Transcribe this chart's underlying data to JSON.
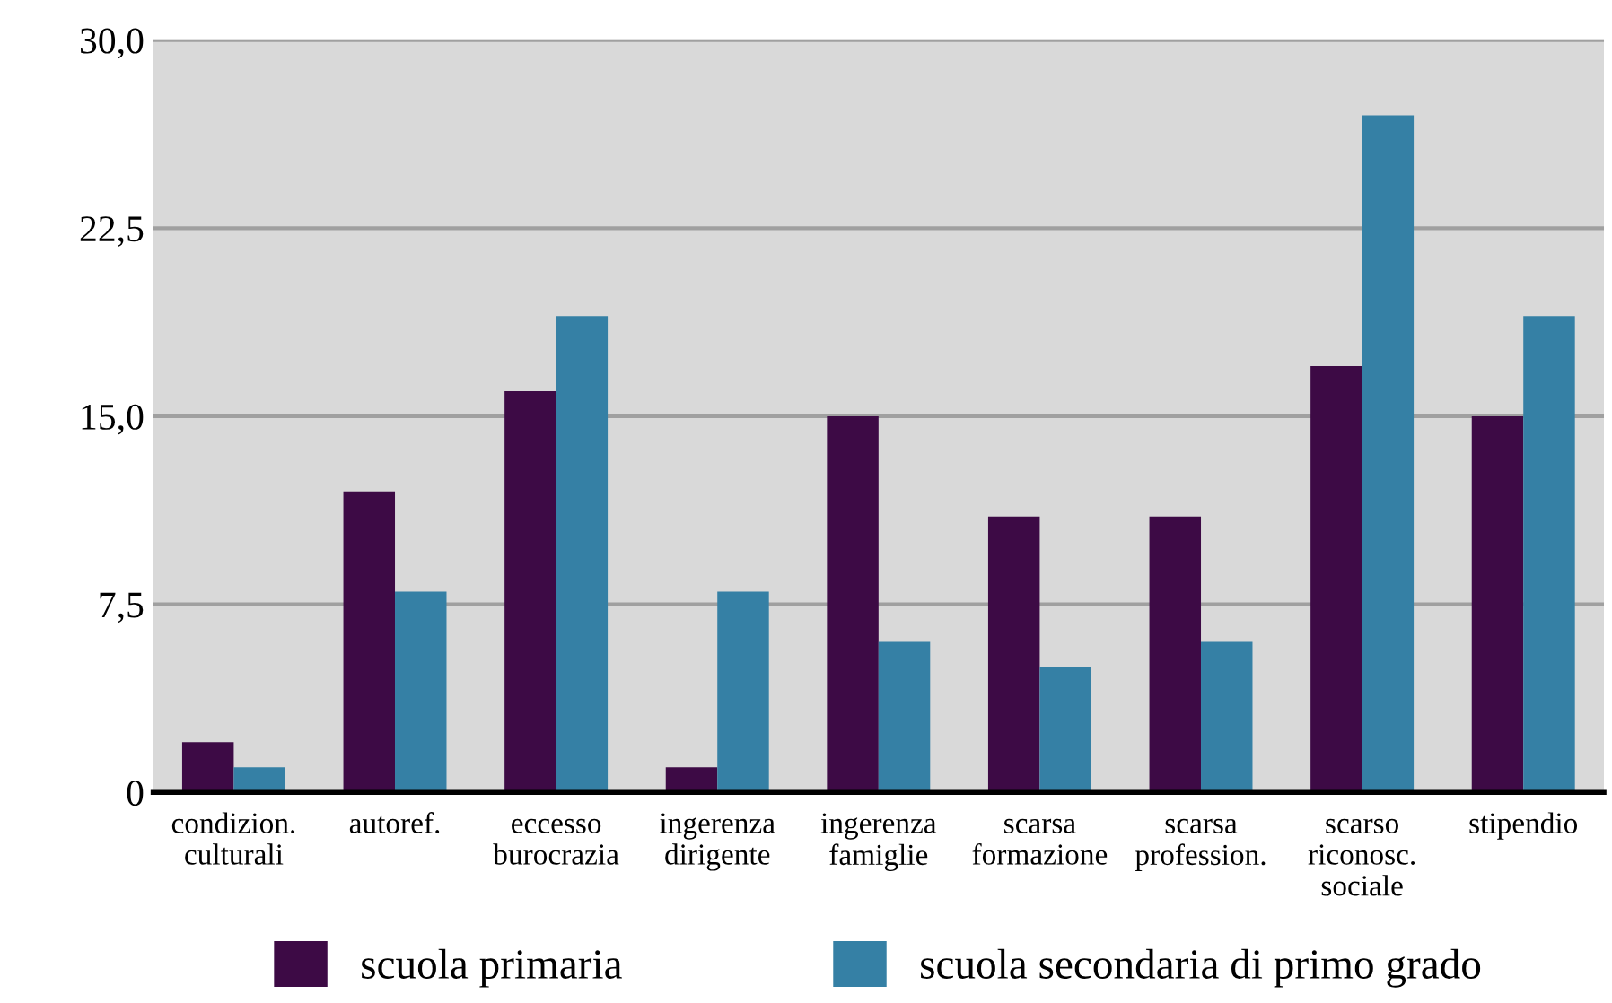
{
  "chart_data": {
    "type": "bar",
    "categories": [
      "condizion.\nculturali",
      "autoref.",
      "eccesso\nburocrazia",
      "ingerenza\ndirigente",
      "ingerenza\nfamiglie",
      "scarsa\nformazione",
      "scarsa\nprofession.",
      "scarso\nriconosc.\nsociale",
      "stipendio"
    ],
    "series": [
      {
        "name": "scuola primaria",
        "color": "#3d0a45",
        "values": [
          2,
          12,
          16,
          1,
          15,
          11,
          11,
          17,
          15
        ]
      },
      {
        "name": "scuola secondaria di primo grado",
        "color": "#3580a5",
        "values": [
          1,
          8,
          19,
          8,
          6,
          5,
          6,
          27,
          19
        ]
      }
    ],
    "ylim": [
      0,
      30
    ],
    "yticks": [
      0,
      {
        "value": 7.5,
        "label": "7,5"
      },
      {
        "value": 15,
        "label": "15,0"
      },
      {
        "value": 22.5,
        "label": "22,5"
      },
      {
        "value": 30,
        "label": "30,0"
      }
    ],
    "grid": "y",
    "legend": "bottom"
  }
}
